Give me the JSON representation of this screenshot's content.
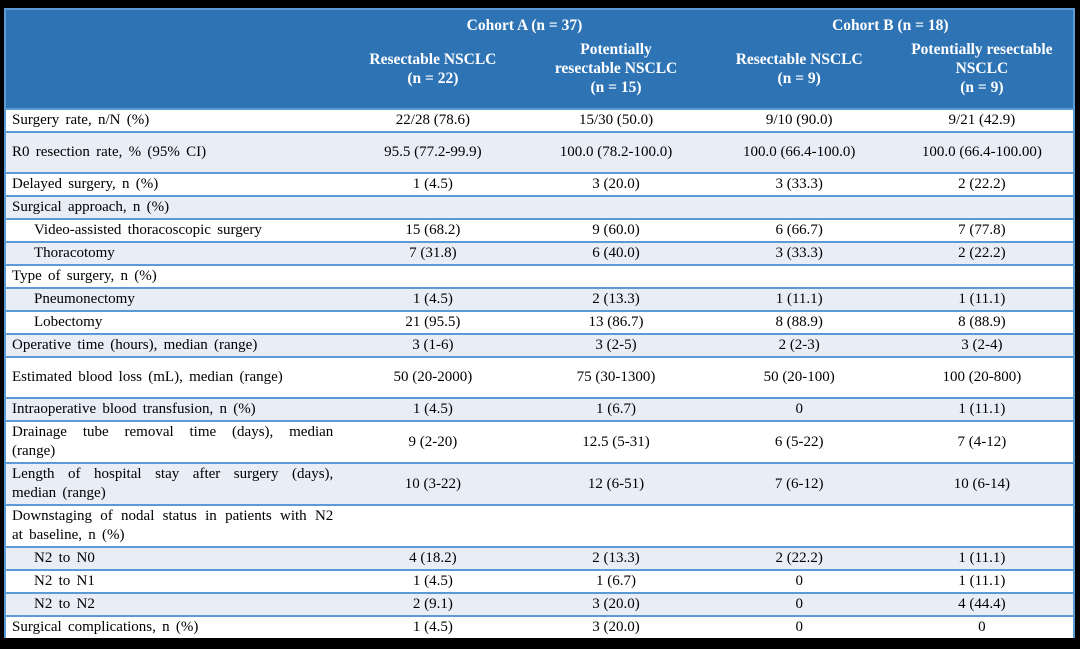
{
  "table": {
    "header": {
      "cohort_a": "Cohort A (n = 37)",
      "cohort_b": "Cohort B (n = 18)",
      "columns": [
        {
          "lines": [
            "Resectable NSCLC",
            "(n = 22)"
          ]
        },
        {
          "lines": [
            "Potentially",
            "resectable NSCLC",
            "(n = 15)"
          ]
        },
        {
          "lines": [
            "Resectable NSCLC",
            "(n = 9)"
          ]
        },
        {
          "lines": [
            "Potentially resectable",
            "NSCLC",
            "(n = 9)"
          ]
        }
      ]
    },
    "rows": [
      {
        "label": "Surgery rate, n/N (%)",
        "indent": false,
        "tall": false,
        "values": [
          "22/28 (78.6)",
          "15/30 (50.0)",
          "9/10 (90.0)",
          "9/21 (42.9)"
        ]
      },
      {
        "label": "R0 resection rate, % (95% CI)",
        "indent": false,
        "tall": true,
        "values": [
          "95.5 (77.2-99.9)",
          "100.0 (78.2-100.0)",
          "100.0 (66.4-100.0)",
          "100.0 (66.4-100.00)"
        ]
      },
      {
        "label": "Delayed surgery, n (%)",
        "indent": false,
        "tall": false,
        "values": [
          "1 (4.5)",
          "3 (20.0)",
          "3 (33.3)",
          "2 (22.2)"
        ]
      },
      {
        "label": "Surgical approach, n (%)",
        "indent": false,
        "tall": false,
        "values": [
          "",
          "",
          "",
          ""
        ]
      },
      {
        "label": "Video-assisted thoracoscopic surgery",
        "indent": true,
        "tall": false,
        "values": [
          "15 (68.2)",
          "9 (60.0)",
          "6 (66.7)",
          "7 (77.8)"
        ]
      },
      {
        "label": "Thoracotomy",
        "indent": true,
        "tall": false,
        "values": [
          "7 (31.8)",
          "6 (40.0)",
          "3 (33.3)",
          "2 (22.2)"
        ]
      },
      {
        "label": "Type of surgery, n (%)",
        "indent": false,
        "tall": false,
        "values": [
          "",
          "",
          "",
          ""
        ]
      },
      {
        "label": "Pneumonectomy",
        "indent": true,
        "tall": false,
        "values": [
          "1 (4.5)",
          "2 (13.3)",
          "1 (11.1)",
          "1 (11.1)"
        ]
      },
      {
        "label": "Lobectomy",
        "indent": true,
        "tall": false,
        "values": [
          "21 (95.5)",
          "13 (86.7)",
          "8 (88.9)",
          "8 (88.9)"
        ]
      },
      {
        "label": "Operative time (hours), median (range)",
        "indent": false,
        "tall": false,
        "values": [
          "3 (1-6)",
          "3 (2-5)",
          "2 (2-3)",
          "3 (2-4)"
        ]
      },
      {
        "label": "Estimated blood loss (mL), median (range)",
        "indent": false,
        "tall": true,
        "values": [
          "50 (20-2000)",
          "75 (30-1300)",
          "50 (20-100)",
          "100 (20-800)"
        ]
      },
      {
        "label": "Intraoperative blood transfusion, n (%)",
        "indent": false,
        "tall": false,
        "values": [
          "1 (4.5)",
          "1 (6.7)",
          "0",
          "1 (11.1)"
        ]
      },
      {
        "label": "Drainage tube removal time (days), median (range)",
        "indent": false,
        "tall": false,
        "values": [
          "9 (2-20)",
          "12.5 (5-31)",
          "6 (5-22)",
          "7 (4-12)"
        ]
      },
      {
        "label": "Length of hospital stay after surgery (days), median (range)",
        "indent": false,
        "tall": false,
        "values": [
          "10 (3-22)",
          "12 (6-51)",
          "7 (6-12)",
          "10 (6-14)"
        ]
      },
      {
        "label": "Downstaging of nodal status in patients with N2 at baseline, n (%)",
        "indent": false,
        "tall": false,
        "values": [
          "",
          "",
          "",
          ""
        ]
      },
      {
        "label": "N2 to N0",
        "indent": true,
        "tall": false,
        "values": [
          "4 (18.2)",
          "2 (13.3)",
          "2 (22.2)",
          "1 (11.1)"
        ]
      },
      {
        "label": "N2 to N1",
        "indent": true,
        "tall": false,
        "values": [
          "1 (4.5)",
          "1 (6.7)",
          "0",
          "1 (11.1)"
        ]
      },
      {
        "label": "N2 to N2",
        "indent": true,
        "tall": false,
        "values": [
          "2 (9.1)",
          "3 (20.0)",
          "0",
          "4 (44.4)"
        ]
      },
      {
        "label": "Surgical complications, n (%)",
        "indent": false,
        "tall": false,
        "values": [
          "1 (4.5)",
          "3 (20.0)",
          "0",
          "0"
        ]
      }
    ],
    "colors": {
      "header_bg": "#2E74B5",
      "header_text": "#FFFFFF",
      "row_bg": "#FFFFFF",
      "row_alt_bg": "#E9EDF6",
      "border": "#5B9BD5",
      "frame": "#000000",
      "text": "#000000"
    }
  }
}
